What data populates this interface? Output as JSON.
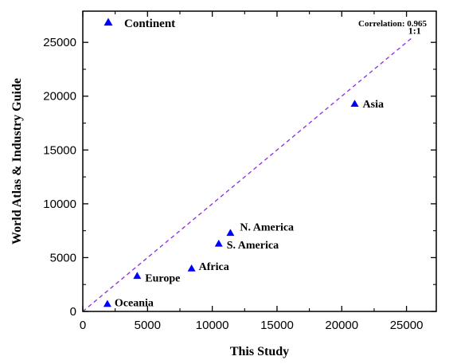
{
  "chart_data": {
    "type": "scatter",
    "xlabel": "This Study",
    "ylabel": "World Atlas & Industry Guide",
    "xlim": [
      0,
      27300
    ],
    "ylim": [
      0,
      27900
    ],
    "xticks": [
      0,
      5000,
      10000,
      15000,
      20000,
      25000
    ],
    "yticks": [
      0,
      5000,
      10000,
      15000,
      20000,
      25000
    ],
    "grid": false,
    "series": [
      {
        "name": "Continent",
        "color": "#0000ff",
        "marker": "triangle-up",
        "points": [
          {
            "label": "Asia",
            "x": 21000,
            "y": 19300
          },
          {
            "label": "N. America",
            "x": 11400,
            "y": 7300
          },
          {
            "label": "S. America",
            "x": 10500,
            "y": 6300
          },
          {
            "label": "Africa",
            "x": 8400,
            "y": 4000
          },
          {
            "label": "Europe",
            "x": 4200,
            "y": 3300
          },
          {
            "label": "Oceania",
            "x": 1900,
            "y": 700
          }
        ]
      }
    ],
    "reference_line": {
      "label": "1:1",
      "x": [
        0,
        25500
      ],
      "y": [
        0,
        25500
      ],
      "color": "#8a2be2",
      "style": "dashed"
    },
    "annotation": "Correlation: 0.965",
    "legend_position": "top-left"
  }
}
